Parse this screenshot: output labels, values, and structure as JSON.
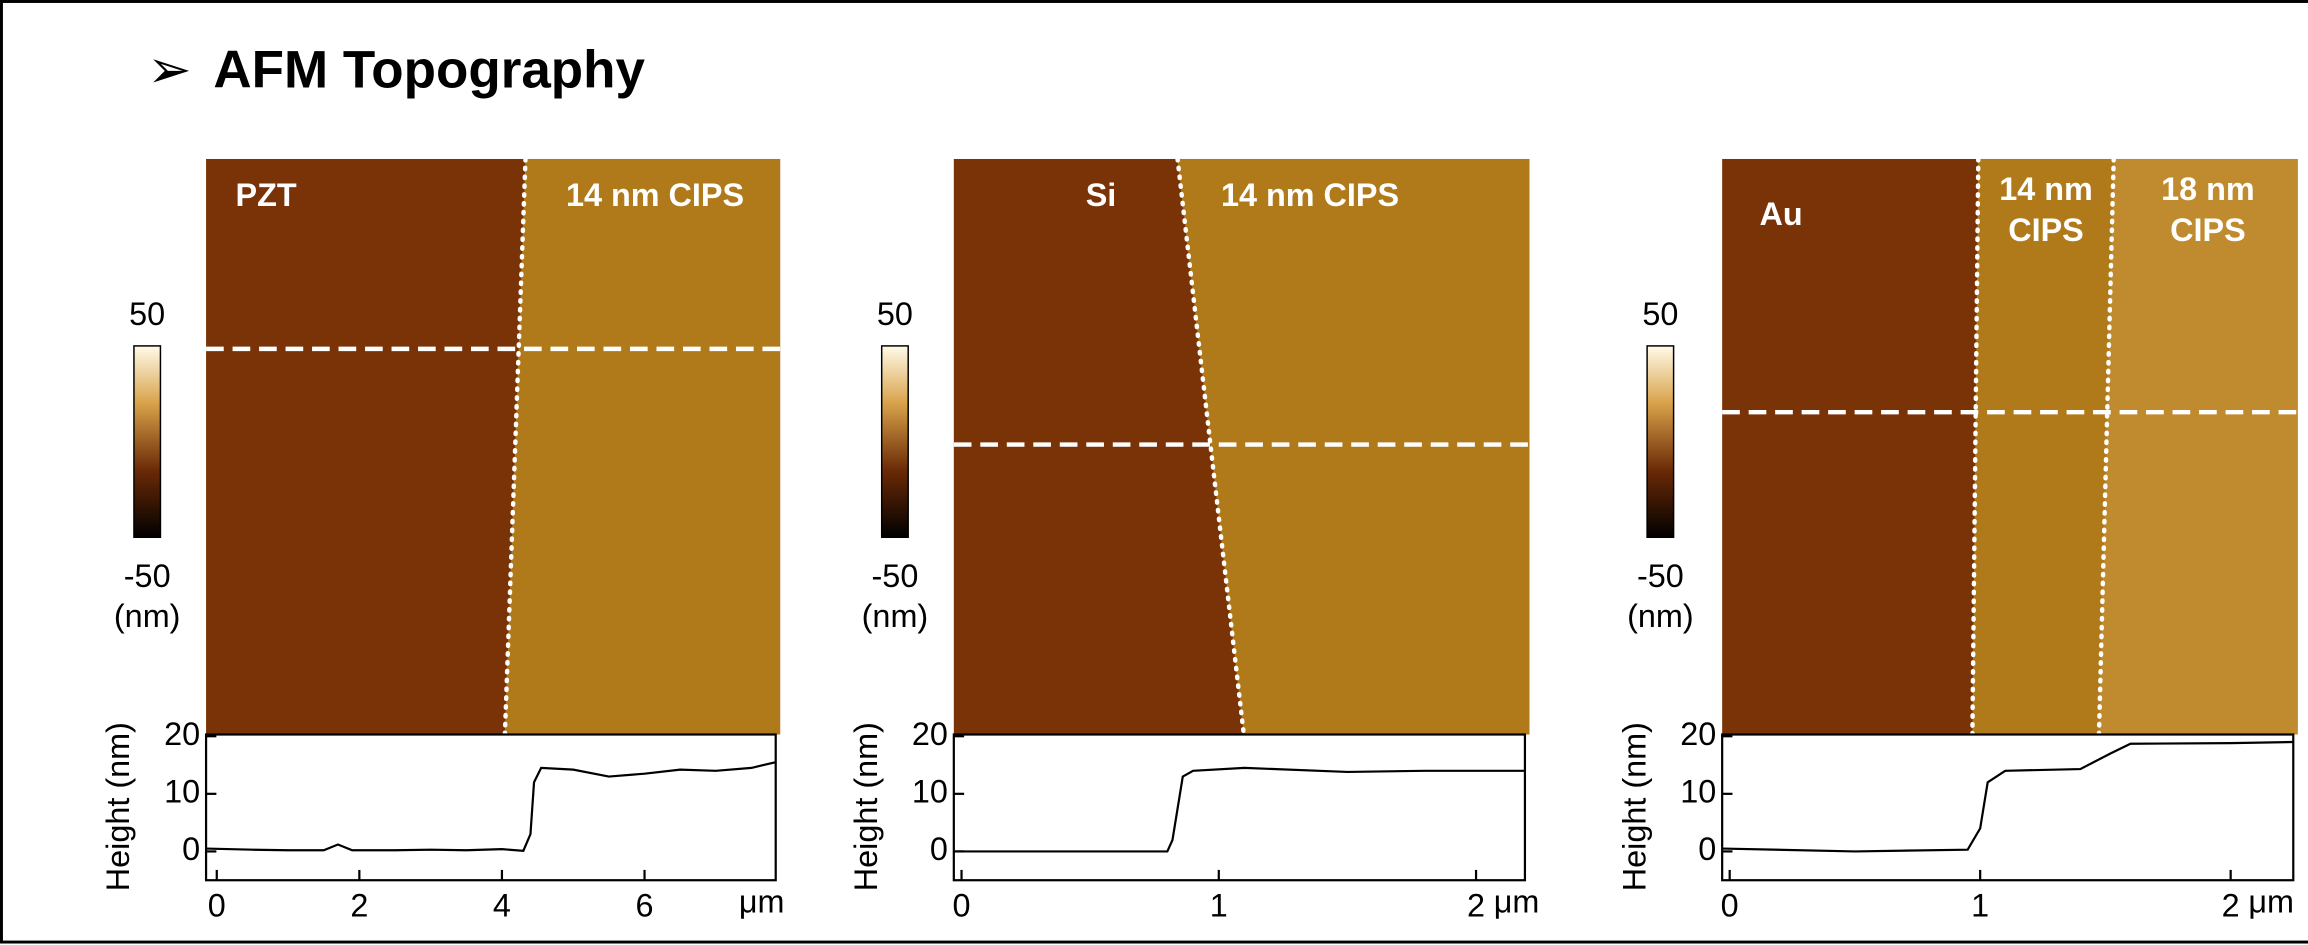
{
  "title": "AFM Topography",
  "panels": [
    {
      "regions": [
        [
          "PZT"
        ],
        [
          "14 nm CIPS"
        ]
      ],
      "colorbar": {
        "max": 50,
        "min": -50,
        "unit": "(nm)"
      },
      "profile": {
        "type": "line",
        "ylabel": "Height (nm)",
        "x_unit": "μm",
        "x": [
          -0.15,
          0.5,
          1,
          1.5,
          1.7,
          1.9,
          2.5,
          3,
          3.5,
          4,
          4.3,
          4.4,
          4.45,
          4.55,
          5,
          5.5,
          6,
          6.5,
          7,
          7.5,
          7.84
        ],
        "values": [
          0.5,
          0.3,
          0.2,
          0.2,
          1.2,
          0.2,
          0.2,
          0.3,
          0.2,
          0.4,
          0.1,
          3,
          12,
          14.5,
          14.2,
          13,
          13.5,
          14.2,
          14,
          14.5,
          15.5
        ],
        "xlim": [
          -0.15,
          7.84
        ],
        "ylim": [
          -5,
          20.3
        ],
        "xticks": [
          0,
          2,
          4,
          6
        ],
        "yticks": [
          0,
          10,
          20
        ]
      }
    },
    {
      "regions": [
        [
          "Si"
        ],
        [
          "14 nm CIPS"
        ]
      ],
      "colorbar": {
        "max": 50,
        "min": -50,
        "unit": "(nm)"
      },
      "profile": {
        "type": "line",
        "ylabel": "Height (nm)",
        "x_unit": "μm",
        "x": [
          -0.03,
          0.5,
          0.8,
          0.82,
          0.86,
          0.9,
          1.1,
          1.5,
          1.8,
          2.19
        ],
        "values": [
          0,
          0,
          0,
          2,
          13,
          14,
          14.5,
          13.8,
          14,
          14
        ],
        "xlim": [
          -0.03,
          2.19
        ],
        "ylim": [
          -5,
          20.3
        ],
        "xticks": [
          0,
          1,
          2
        ],
        "yticks": [
          0,
          10,
          20
        ]
      }
    },
    {
      "regions": [
        [
          "Au"
        ],
        [
          "14 nm",
          "CIPS"
        ],
        [
          "18 nm",
          "CIPS"
        ]
      ],
      "colorbar": {
        "max": 50,
        "min": -50,
        "unit": "(nm)"
      },
      "profile": {
        "type": "line",
        "ylabel": "Height (nm)",
        "x_unit": "μm",
        "x": [
          -0.03,
          0.5,
          0.95,
          1.0,
          1.03,
          1.1,
          1.4,
          1.52,
          1.6,
          2.0,
          2.25
        ],
        "values": [
          0.5,
          0,
          0.3,
          4,
          12,
          14,
          14.3,
          17,
          18.7,
          18.8,
          19
        ],
        "xlim": [
          -0.03,
          2.25
        ],
        "ylim": [
          -5,
          20.3
        ],
        "xticks": [
          0,
          1,
          2
        ],
        "yticks": [
          0,
          10,
          20
        ]
      }
    }
  ]
}
